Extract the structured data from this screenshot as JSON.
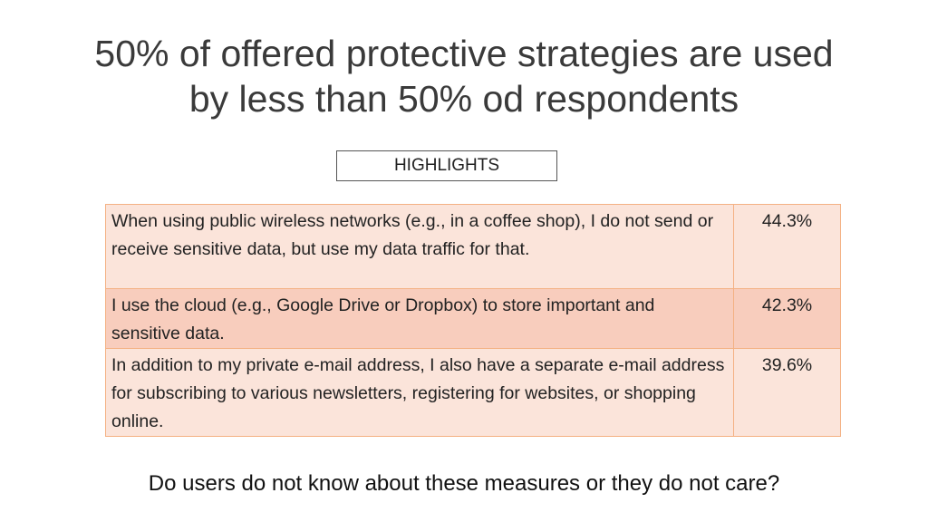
{
  "slide": {
    "title_line1": "50% of offered protective strategies are used",
    "title_line2": "by less than 50% od respondents",
    "highlights_label": "HIGHLIGHTS",
    "table": {
      "rows": [
        {
          "text": "When using public wireless networks (e.g., in a coffee shop), I do not send or receive sensitive data, but use my data traffic for that.",
          "percent": "44.3%"
        },
        {
          "text": "I use the cloud (e.g., Google Drive or Dropbox) to store important and sensitive data.",
          "percent": "42.3%"
        },
        {
          "text": "In addition to my private e-mail address, I also have a separate e-mail address for subscribing to various newsletters, registering for websites, or shopping online.",
          "percent": "39.6%"
        }
      ]
    },
    "footer_question": "Do users do not know about these measures or they do not care?"
  },
  "colors": {
    "table_border": "#f4b183",
    "row_light": "#fbe4da",
    "row_dark": "#f8cdbd"
  }
}
